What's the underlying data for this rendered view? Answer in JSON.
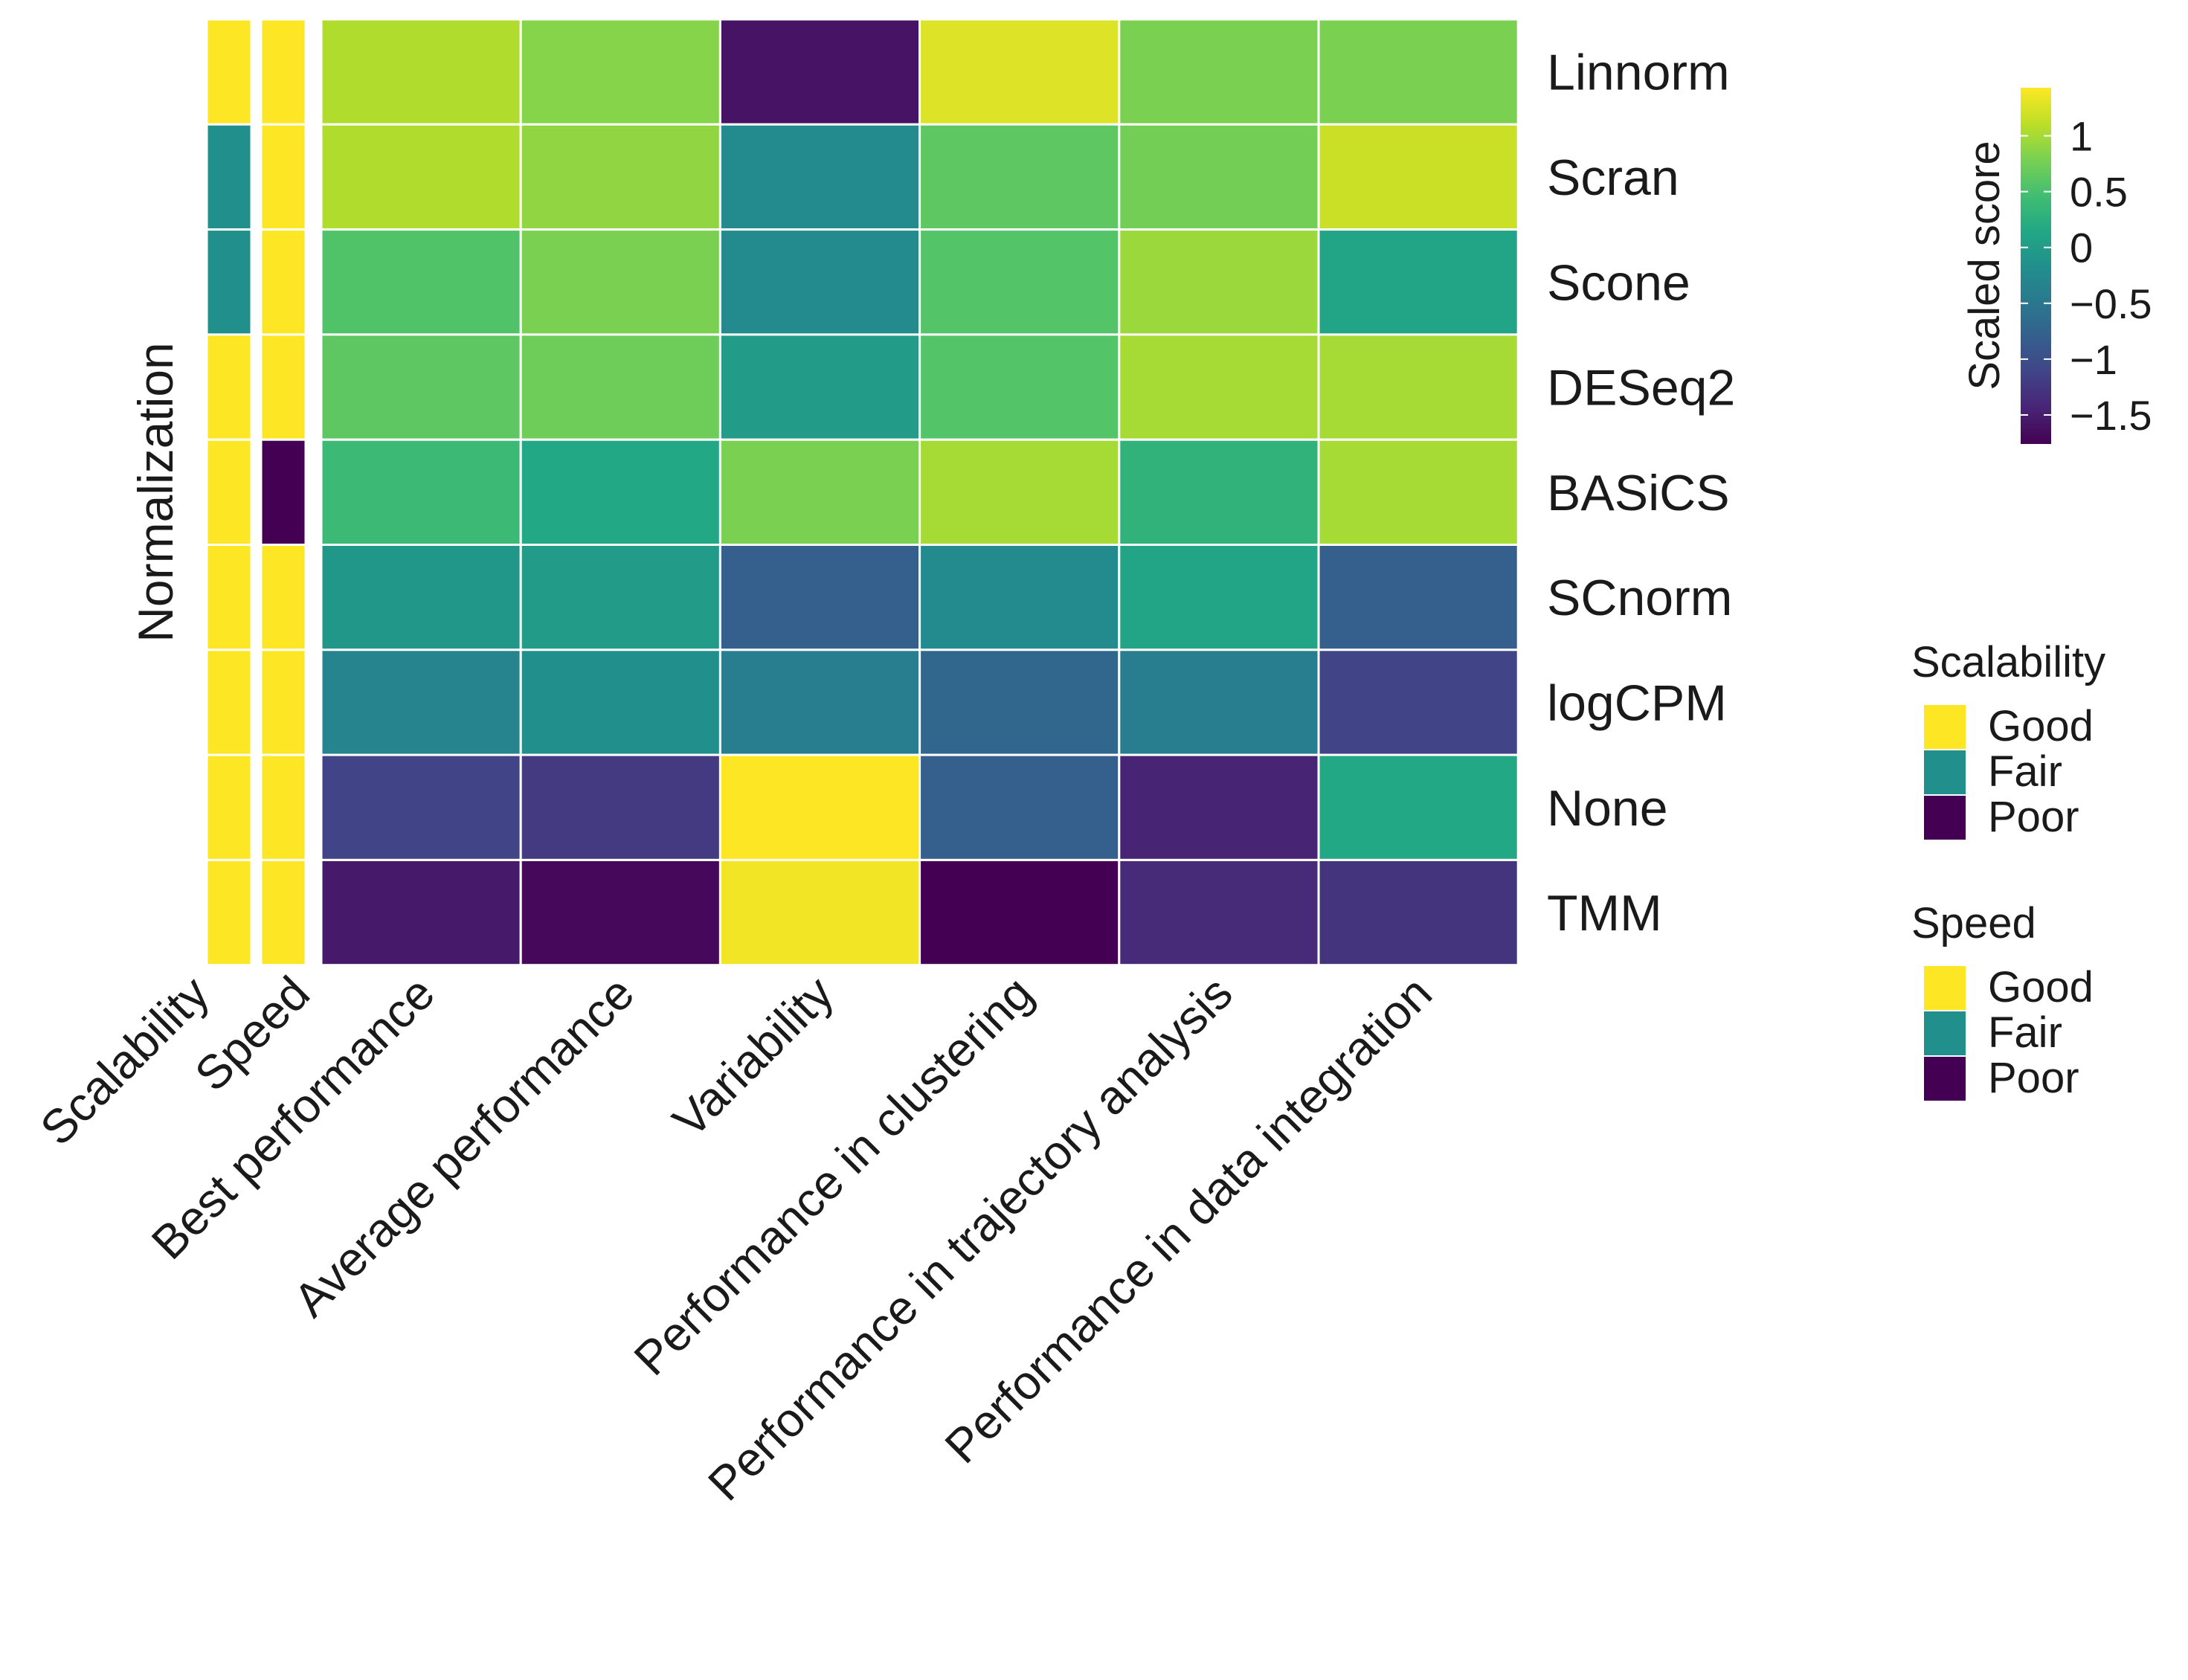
{
  "chart_data": {
    "type": "heatmap",
    "ylabel": "Normalization",
    "rows": [
      "Linnorm",
      "Scran",
      "Scone",
      "DESeq2",
      "BASiCS",
      "SCnorm",
      "logCPM",
      "None",
      "TMM"
    ],
    "columns": [
      "Best performance",
      "Average performance",
      "Variability",
      "Performance in clustering",
      "Performance in trajectory analysis",
      "Performance in data integration"
    ],
    "values": [
      [
        1.05,
        0.85,
        -1.6,
        1.27,
        0.79,
        0.79
      ],
      [
        1.05,
        0.9,
        -0.23,
        0.63,
        0.75,
        1.17
      ],
      [
        0.55,
        0.79,
        -0.23,
        0.57,
        0.95,
        0.1
      ],
      [
        0.63,
        0.72,
        0.0,
        0.57,
        1.0,
        1.0
      ],
      [
        0.4,
        0.15,
        0.79,
        1.0,
        0.3,
        1.0
      ],
      [
        -0.07,
        0.0,
        -0.8,
        -0.23,
        0.1,
        -0.8
      ],
      [
        -0.33,
        -0.17,
        -0.42,
        -0.7,
        -0.42,
        -1.12
      ],
      [
        -1.12,
        -1.22,
        1.43,
        -0.8,
        -1.44,
        0.15
      ],
      [
        -1.54,
        -1.7,
        1.37,
        -1.76,
        -1.38,
        -1.28
      ]
    ],
    "categorical_columns": [
      {
        "name": "Scalability",
        "values": [
          "Good",
          "Fair",
          "Fair",
          "Good",
          "Good",
          "Good",
          "Good",
          "Good",
          "Good"
        ]
      },
      {
        "name": "Speed",
        "values": [
          "Good",
          "Good",
          "Good",
          "Good",
          "Poor",
          "Good",
          "Good",
          "Good",
          "Good"
        ]
      }
    ],
    "colorbar": {
      "title": "Scaled score",
      "range": [
        -1.76,
        1.43
      ],
      "ticks": [
        1,
        0.5,
        0,
        -0.5,
        -1,
        -1.5
      ],
      "tick_labels": [
        "1",
        "0.5",
        "0",
        "−0.5",
        "−1",
        "−1.5"
      ],
      "colormap": "viridis"
    },
    "legends": [
      {
        "title": "Scalability",
        "levels": [
          "Good",
          "Fair",
          "Poor"
        ]
      },
      {
        "title": "Speed",
        "levels": [
          "Good",
          "Fair",
          "Poor"
        ]
      }
    ],
    "category_colors": {
      "Good": "#fde725",
      "Fair": "#21908c",
      "Poor": "#440154"
    }
  }
}
